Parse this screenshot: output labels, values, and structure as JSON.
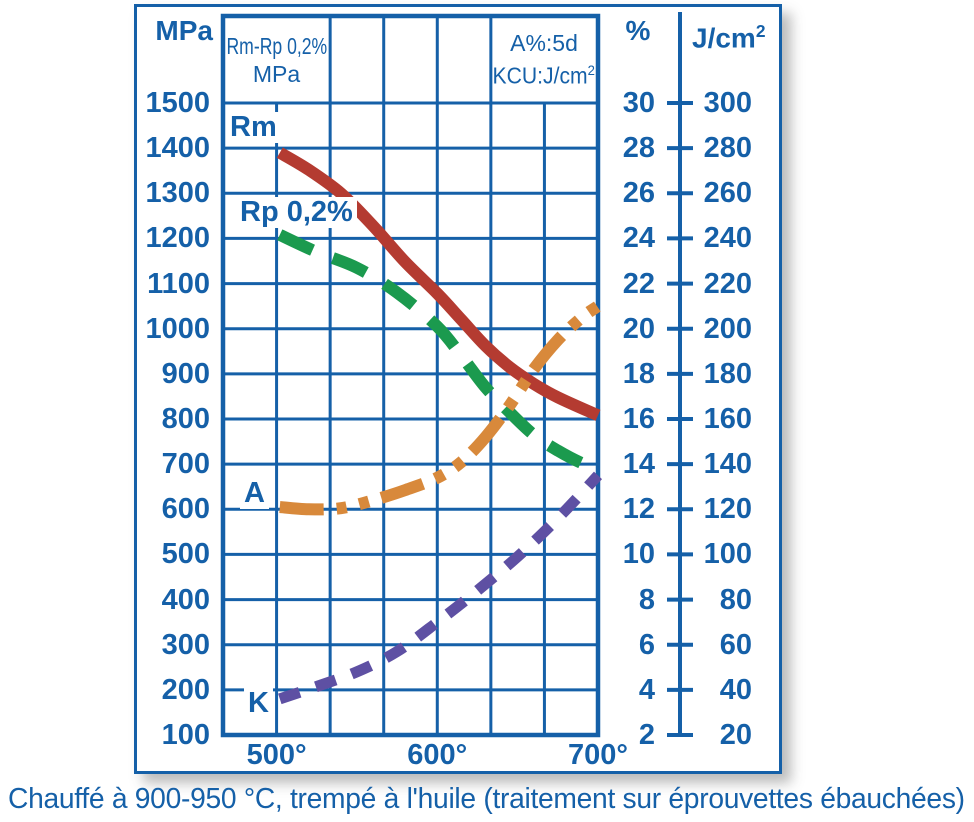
{
  "figure": {
    "caption": "Chauffé à 900-950 °C, trempé à l'huile (traitement sur éprouvettes ébauchées)",
    "colors": {
      "blue": "#1560a8",
      "rm_red": "#b43b31",
      "rp_green": "#1b9a4e",
      "a_orange": "#d8893b",
      "k_purple": "#5e50a3",
      "background": "#ffffff"
    }
  },
  "headers": {
    "mpa_axis_unit": "MPa",
    "percent_axis_unit": "%",
    "impact_axis_unit_prefix": "J/cm",
    "impact_axis_unit_sup": "2",
    "strength_box_line1": "Rm-Rp 0,2%",
    "strength_box_line2": "MPa",
    "ductility_box_line1": "A%:5d",
    "ductility_box_line2_prefix": "KCU:J/cm",
    "ductility_box_line2_sup": "2"
  },
  "curve_labels": {
    "rm": "Rm",
    "rp": "Rp 0,2%",
    "a": "A",
    "k": "K"
  },
  "chart_data": {
    "type": "line",
    "title": "",
    "x_axis": {
      "unit": "°C",
      "tick_labels": [
        "500°",
        "600°",
        "700°"
      ],
      "tick_values": [
        500,
        600,
        700
      ],
      "range": [
        466.7,
        700
      ],
      "gridline_step": 33.33,
      "grid": true
    },
    "y_axes": {
      "mpa": {
        "header": "MPa",
        "range": [
          100,
          1500
        ],
        "ticks": [
          1500,
          1400,
          1300,
          1200,
          1100,
          1000,
          900,
          800,
          700,
          600,
          500,
          400,
          300,
          200,
          100
        ],
        "grid": true
      },
      "percent": {
        "header": "%",
        "range": [
          2,
          30
        ],
        "ticks": [
          30,
          28,
          26,
          24,
          22,
          20,
          18,
          16,
          14,
          12,
          10,
          8,
          6,
          4,
          2
        ],
        "grid": false
      },
      "jcm2": {
        "header": "J/cm²",
        "range": [
          20,
          300
        ],
        "ticks": [
          300,
          280,
          260,
          240,
          220,
          200,
          180,
          160,
          140,
          120,
          100,
          80,
          60,
          40,
          20
        ],
        "grid": false
      }
    },
    "series": [
      {
        "id": "rm",
        "label": "Rm",
        "axis": "mpa",
        "unit": "MPa",
        "color": "#b43b31",
        "line_style": "solid",
        "stroke_width": 12,
        "points": [
          [
            502,
            1390
          ],
          [
            520,
            1352
          ],
          [
            540,
            1300
          ],
          [
            560,
            1228
          ],
          [
            580,
            1148
          ],
          [
            600,
            1078
          ],
          [
            615,
            1020
          ],
          [
            630,
            962
          ],
          [
            645,
            915
          ],
          [
            660,
            878
          ],
          [
            675,
            848
          ],
          [
            700,
            808
          ]
        ]
      },
      {
        "id": "rp02",
        "label": "Rp 0,2%",
        "axis": "mpa",
        "unit": "MPa",
        "color": "#1b9a4e",
        "line_style": "dashed",
        "stroke_width": 12,
        "points": [
          [
            502,
            1208
          ],
          [
            525,
            1170
          ],
          [
            550,
            1135
          ],
          [
            575,
            1080
          ],
          [
            600,
            1005
          ],
          [
            615,
            940
          ],
          [
            630,
            870
          ],
          [
            645,
            815
          ],
          [
            660,
            765
          ],
          [
            675,
            730
          ],
          [
            690,
            702
          ],
          [
            700,
            690
          ]
        ]
      },
      {
        "id": "a",
        "label": "A",
        "axis": "percent",
        "unit": "%",
        "color": "#d8893b",
        "line_style": "dash-dot-dot",
        "stroke_width": 12,
        "points": [
          [
            502,
            12.1
          ],
          [
            520,
            12.0
          ],
          [
            540,
            12.05
          ],
          [
            560,
            12.4
          ],
          [
            580,
            12.85
          ],
          [
            600,
            13.4
          ],
          [
            615,
            14.1
          ],
          [
            630,
            15.2
          ],
          [
            645,
            16.6
          ],
          [
            660,
            18.2
          ],
          [
            675,
            19.5
          ],
          [
            690,
            20.5
          ],
          [
            700,
            21.0
          ]
        ]
      },
      {
        "id": "k",
        "label": "K",
        "axis": "jcm2",
        "unit": "J/cm²",
        "color": "#5e50a3",
        "line_style": "short-dash",
        "stroke_width": 11,
        "points": [
          [
            502,
            36
          ],
          [
            525,
            41.5
          ],
          [
            550,
            48
          ],
          [
            575,
            57
          ],
          [
            600,
            70
          ],
          [
            625,
            84
          ],
          [
            650,
            99
          ],
          [
            675,
            116
          ],
          [
            700,
            135
          ]
        ]
      }
    ]
  }
}
